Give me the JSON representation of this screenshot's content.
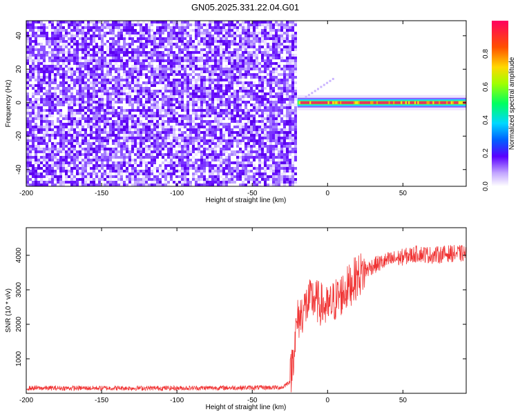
{
  "page": {
    "title": "GN05.2025.331.22.04.G01"
  },
  "chart_data": [
    {
      "id": "spectrogram",
      "type": "heatmap",
      "title": "GN05.2025.331.22.04.G01",
      "xlabel": "Height of straight line (km)",
      "ylabel": "Frequency (Hz)",
      "xlim": [
        -200,
        92
      ],
      "ylim": [
        -50,
        49
      ],
      "xticks": [
        -200,
        -150,
        -100,
        -50,
        0,
        50
      ],
      "yticks": [
        -40,
        -20,
        0,
        20,
        40
      ],
      "noise_region_x": [
        -200,
        -20
      ],
      "signal_band": {
        "x": [
          -20,
          92
        ],
        "frequency": 0
      },
      "colorbar": {
        "label": "Normalized spectral amplitude",
        "range": [
          0,
          1
        ],
        "ticks": [
          0.0,
          0.2,
          0.4,
          0.6,
          0.8
        ]
      }
    },
    {
      "id": "snr",
      "type": "line",
      "xlabel": "Height of straight line (km)",
      "ylabel": "SNR (10 * v/v)",
      "xlim": [
        -200,
        92
      ],
      "ylim": [
        0,
        4800
      ],
      "xticks": [
        -200,
        -150,
        -100,
        -50,
        0,
        50
      ],
      "yticks": [
        1000,
        2000,
        3000,
        4000
      ],
      "color": "#f03434",
      "profile": {
        "x": [
          -200,
          -100,
          -30,
          -25,
          -20,
          -15,
          -10,
          -5,
          0,
          5,
          10,
          15,
          20,
          25,
          30,
          40,
          50,
          60,
          70,
          80,
          92
        ],
        "y": [
          150,
          150,
          170,
          350,
          2100,
          2500,
          2750,
          2600,
          2450,
          2700,
          2900,
          3150,
          3400,
          3550,
          3700,
          3850,
          3950,
          4050,
          4000,
          4050,
          4050
        ]
      }
    }
  ]
}
